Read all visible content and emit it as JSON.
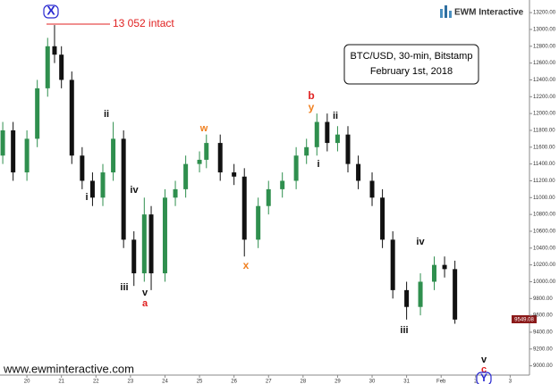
{
  "chart_data": {
    "type": "candlestick",
    "title": [
      "BTC/USD, 30-min, Bitstamp",
      "February 1st, 2018"
    ],
    "logo": "EWM Interactive",
    "website": "www.ewminteractive.com",
    "last_price_label": "9549.08",
    "up_color": "#2f8f4e",
    "down_color": "#111111",
    "x": [
      19.3,
      19.6,
      20.0,
      20.3,
      20.6,
      20.8,
      21.0,
      21.3,
      21.6,
      21.9,
      22.2,
      22.5,
      22.8,
      23.1,
      23.4,
      23.6,
      24.0,
      24.3,
      24.6,
      25.0,
      25.2,
      25.6,
      26.0,
      26.3,
      26.7,
      27.0,
      27.4,
      27.8,
      28.1,
      28.4,
      28.7,
      29.0,
      29.3,
      29.6,
      30.0,
      30.3,
      30.6,
      31.0,
      31.4,
      31.8,
      32.1,
      32.4
    ],
    "open": [
      11500,
      11800,
      11300,
      11700,
      12300,
      12800,
      12700,
      12400,
      11500,
      11200,
      11000,
      11300,
      11700,
      10500,
      10100,
      10800,
      10100,
      11000,
      11100,
      11400,
      11450,
      11650,
      11300,
      11250,
      10500,
      10900,
      11100,
      11200,
      11500,
      11600,
      11900,
      11650,
      11750,
      11400,
      11200,
      11000,
      10500,
      9900,
      9700,
      10000,
      10200,
      10150
    ],
    "high": [
      11900,
      11900,
      11800,
      12400,
      12900,
      13052,
      12800,
      12500,
      11600,
      11300,
      11400,
      11900,
      11800,
      10600,
      11000,
      10900,
      11100,
      11200,
      11500,
      11550,
      11750,
      11750,
      11400,
      11350,
      11000,
      11200,
      11300,
      11600,
      11700,
      12000,
      12000,
      11850,
      11850,
      11500,
      11300,
      11100,
      10600,
      10000,
      10100,
      10300,
      10300,
      10250
    ],
    "low": [
      11400,
      11200,
      11200,
      11600,
      12200,
      12600,
      12300,
      11400,
      11100,
      10900,
      10900,
      11200,
      10400,
      9950,
      10000,
      9900,
      10000,
      10900,
      11000,
      11300,
      11350,
      11200,
      11150,
      10300,
      10400,
      10800,
      11000,
      11100,
      11400,
      11500,
      11550,
      11550,
      11300,
      11100,
      10900,
      10400,
      9800,
      9550,
      9600,
      9900,
      10050,
      9500
    ],
    "close": [
      11800,
      11300,
      11700,
      12300,
      12800,
      12700,
      12400,
      11500,
      11200,
      11000,
      11300,
      11700,
      10500,
      10100,
      10800,
      10100,
      11000,
      11100,
      11400,
      11450,
      11650,
      11300,
      11250,
      10500,
      10900,
      11100,
      11200,
      11500,
      11600,
      11900,
      11650,
      11750,
      11400,
      11200,
      11000,
      10500,
      9900,
      9700,
      10000,
      10200,
      10150,
      9550
    ],
    "xlim": [
      19.22,
      34.56
    ],
    "ylim": [
      8890,
      13350
    ],
    "xticks": [
      20,
      21,
      22,
      23,
      24,
      25,
      26,
      27,
      28,
      29,
      30,
      31,
      {
        "value": 32,
        "label": "Feb"
      },
      {
        "value": 33,
        "label": "2"
      },
      {
        "value": 34,
        "label": "3"
      }
    ],
    "yticks": [
      {
        "value": 9000,
        "label": "9000.00"
      },
      {
        "value": 9200,
        "label": "9200.00"
      },
      {
        "value": 9400,
        "label": "9400.00"
      },
      {
        "value": 9600,
        "label": "9600.00"
      },
      {
        "value": 9800,
        "label": "9800.00"
      },
      {
        "value": 10000,
        "label": "10000.00"
      },
      {
        "value": 10200,
        "label": "10200.00"
      },
      {
        "value": 10400,
        "label": "10400.00"
      },
      {
        "value": 10600,
        "label": "10600.00"
      },
      {
        "value": 10800,
        "label": "10800.00"
      },
      {
        "value": 11000,
        "label": "11000.00"
      },
      {
        "value": 11200,
        "label": "11200.00"
      },
      {
        "value": 11400,
        "label": "11400.00"
      },
      {
        "value": 11600,
        "label": "11600.00"
      },
      {
        "value": 11800,
        "label": "11800.00"
      },
      {
        "value": 12000,
        "label": "12000.00"
      },
      {
        "value": 12200,
        "label": "12200.00"
      },
      {
        "value": 12400,
        "label": "12400.00"
      },
      {
        "value": 12600,
        "label": "12600.00"
      },
      {
        "value": 12800,
        "label": "12800.00"
      },
      {
        "value": 13000,
        "label": "13000.00"
      },
      {
        "value": 13200,
        "label": "13200.00"
      }
    ],
    "annotations": [
      {
        "text": "X",
        "color": "#2a2ad0"
      },
      {
        "text": "13 052 intact",
        "color": "#e02020"
      },
      {
        "text": "ii",
        "color": "#111"
      },
      {
        "text": "i",
        "color": "#111"
      },
      {
        "text": "iv",
        "color": "#111"
      },
      {
        "text": "iii",
        "color": "#111"
      },
      {
        "text": "v",
        "color": "#111"
      },
      {
        "text": "a",
        "color": "#e02020"
      },
      {
        "text": "w",
        "color": "#f08020"
      },
      {
        "text": "x",
        "color": "#f08020"
      },
      {
        "text": "b",
        "color": "#e02020"
      },
      {
        "text": "y",
        "color": "#f08020"
      },
      {
        "text": "i",
        "color": "#111"
      },
      {
        "text": "ii",
        "color": "#111"
      },
      {
        "text": "iii",
        "color": "#111"
      },
      {
        "text": "iv",
        "color": "#111"
      },
      {
        "text": "v",
        "color": "#111"
      },
      {
        "text": "c",
        "color": "#e02020"
      },
      {
        "text": "Y",
        "color": "#2a2ad0"
      }
    ]
  }
}
